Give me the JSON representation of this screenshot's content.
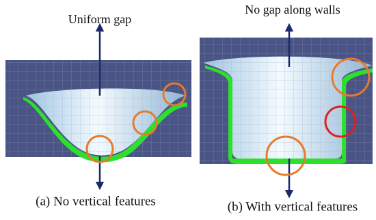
{
  "panels": [
    {
      "top_label": "Uniform gap",
      "caption": "(a) No vertical features"
    },
    {
      "top_label": "No gap along walls",
      "caption": "(b) With vertical features"
    }
  ]
}
